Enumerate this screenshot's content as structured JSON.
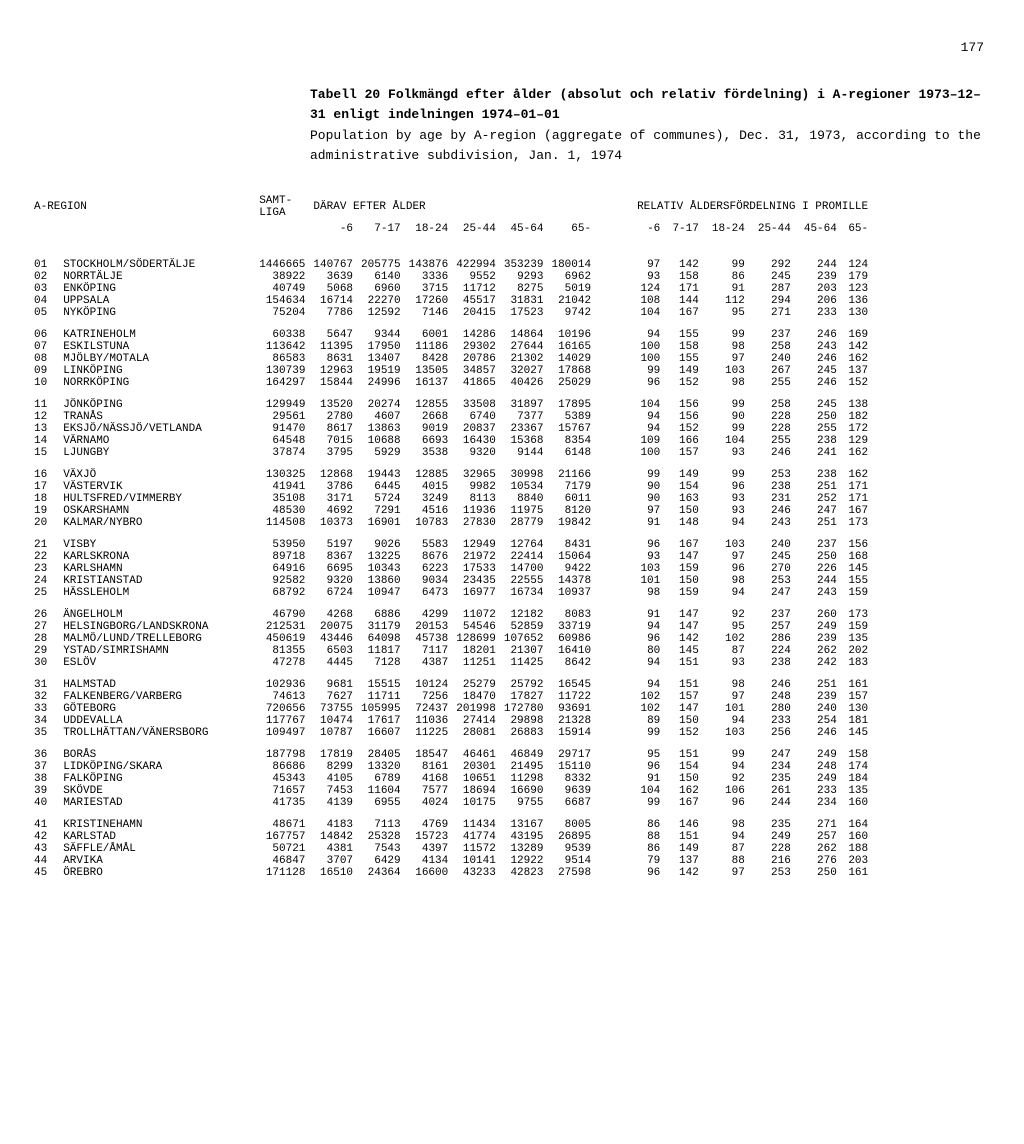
{
  "page_number": "177",
  "title_bold": "Tabell 20   Folkmängd efter ålder (absolut och relativ fördelning) i A-regioner 1973–12–31 enligt indelningen 1974–01–01",
  "title_sub": "Population by age by A-region (aggregate of communes), Dec. 31, 1973, according to the administrative subdivision, Jan. 1, 1974",
  "header_left": "A-REGION",
  "header_samt": "SAMT-\nLIGA",
  "header_darav": "DÄRAV EFTER ÅLDER",
  "header_relativ": "RELATIV ÅLDERSFÖRDELNING I PROMILLE",
  "age_cols": [
    "-6",
    "7-17",
    "18-24",
    "25-44",
    "45-64",
    "65-"
  ],
  "rel_cols": [
    "-6",
    "7-17",
    "18-24",
    "25-44",
    "45-64",
    "65-"
  ],
  "groups": [
    [
      [
        "01",
        "STOCKHOLM/SÖDERTÄLJE",
        "1446665",
        "140767",
        "205775",
        "143876",
        "422994",
        "353239",
        "180014",
        "97",
        "142",
        "99",
        "292",
        "244",
        "124"
      ],
      [
        "02",
        "NORRTÄLJE",
        "38922",
        "3639",
        "6140",
        "3336",
        "9552",
        "9293",
        "6962",
        "93",
        "158",
        "86",
        "245",
        "239",
        "179"
      ],
      [
        "03",
        "ENKÖPING",
        "40749",
        "5068",
        "6960",
        "3715",
        "11712",
        "8275",
        "5019",
        "124",
        "171",
        "91",
        "287",
        "203",
        "123"
      ],
      [
        "04",
        "UPPSALA",
        "154634",
        "16714",
        "22270",
        "17260",
        "45517",
        "31831",
        "21042",
        "108",
        "144",
        "112",
        "294",
        "206",
        "136"
      ],
      [
        "05",
        "NYKÖPING",
        "75204",
        "7786",
        "12592",
        "7146",
        "20415",
        "17523",
        "9742",
        "104",
        "167",
        "95",
        "271",
        "233",
        "130"
      ]
    ],
    [
      [
        "06",
        "KATRINEHOLM",
        "60338",
        "5647",
        "9344",
        "6001",
        "14286",
        "14864",
        "10196",
        "94",
        "155",
        "99",
        "237",
        "246",
        "169"
      ],
      [
        "07",
        "ESKILSTUNA",
        "113642",
        "11395",
        "17950",
        "11186",
        "29302",
        "27644",
        "16165",
        "100",
        "158",
        "98",
        "258",
        "243",
        "142"
      ],
      [
        "08",
        "MJÖLBY/MOTALA",
        "86583",
        "8631",
        "13407",
        "8428",
        "20786",
        "21302",
        "14029",
        "100",
        "155",
        "97",
        "240",
        "246",
        "162"
      ],
      [
        "09",
        "LINKÖPING",
        "130739",
        "12963",
        "19519",
        "13505",
        "34857",
        "32027",
        "17868",
        "99",
        "149",
        "103",
        "267",
        "245",
        "137"
      ],
      [
        "10",
        "NORRKÖPING",
        "164297",
        "15844",
        "24996",
        "16137",
        "41865",
        "40426",
        "25029",
        "96",
        "152",
        "98",
        "255",
        "246",
        "152"
      ]
    ],
    [
      [
        "11",
        "JÖNKÖPING",
        "129949",
        "13520",
        "20274",
        "12855",
        "33508",
        "31897",
        "17895",
        "104",
        "156",
        "99",
        "258",
        "245",
        "138"
      ],
      [
        "12",
        "TRANÅS",
        "29561",
        "2780",
        "4607",
        "2668",
        "6740",
        "7377",
        "5389",
        "94",
        "156",
        "90",
        "228",
        "250",
        "182"
      ],
      [
        "13",
        "EKSJÖ/NÄSSJÖ/VETLANDA",
        "91470",
        "8617",
        "13863",
        "9019",
        "20837",
        "23367",
        "15767",
        "94",
        "152",
        "99",
        "228",
        "255",
        "172"
      ],
      [
        "14",
        "VÄRNAMO",
        "64548",
        "7015",
        "10688",
        "6693",
        "16430",
        "15368",
        "8354",
        "109",
        "166",
        "104",
        "255",
        "238",
        "129"
      ],
      [
        "15",
        "LJUNGBY",
        "37874",
        "3795",
        "5929",
        "3538",
        "9320",
        "9144",
        "6148",
        "100",
        "157",
        "93",
        "246",
        "241",
        "162"
      ]
    ],
    [
      [
        "16",
        "VÄXJÖ",
        "130325",
        "12868",
        "19443",
        "12885",
        "32965",
        "30998",
        "21166",
        "99",
        "149",
        "99",
        "253",
        "238",
        "162"
      ],
      [
        "17",
        "VÄSTERVIK",
        "41941",
        "3786",
        "6445",
        "4015",
        "9982",
        "10534",
        "7179",
        "90",
        "154",
        "96",
        "238",
        "251",
        "171"
      ],
      [
        "18",
        "HULTSFRED/VIMMERBY",
        "35108",
        "3171",
        "5724",
        "3249",
        "8113",
        "8840",
        "6011",
        "90",
        "163",
        "93",
        "231",
        "252",
        "171"
      ],
      [
        "19",
        "OSKARSHAMN",
        "48530",
        "4692",
        "7291",
        "4516",
        "11936",
        "11975",
        "8120",
        "97",
        "150",
        "93",
        "246",
        "247",
        "167"
      ],
      [
        "20",
        "KALMAR/NYBRO",
        "114508",
        "10373",
        "16901",
        "10783",
        "27830",
        "28779",
        "19842",
        "91",
        "148",
        "94",
        "243",
        "251",
        "173"
      ]
    ],
    [
      [
        "21",
        "VISBY",
        "53950",
        "5197",
        "9026",
        "5583",
        "12949",
        "12764",
        "8431",
        "96",
        "167",
        "103",
        "240",
        "237",
        "156"
      ],
      [
        "22",
        "KARLSKRONA",
        "89718",
        "8367",
        "13225",
        "8676",
        "21972",
        "22414",
        "15064",
        "93",
        "147",
        "97",
        "245",
        "250",
        "168"
      ],
      [
        "23",
        "KARLSHAMN",
        "64916",
        "6695",
        "10343",
        "6223",
        "17533",
        "14700",
        "9422",
        "103",
        "159",
        "96",
        "270",
        "226",
        "145"
      ],
      [
        "24",
        "KRISTIANSTAD",
        "92582",
        "9320",
        "13860",
        "9034",
        "23435",
        "22555",
        "14378",
        "101",
        "150",
        "98",
        "253",
        "244",
        "155"
      ],
      [
        "25",
        "HÄSSLEHOLM",
        "68792",
        "6724",
        "10947",
        "6473",
        "16977",
        "16734",
        "10937",
        "98",
        "159",
        "94",
        "247",
        "243",
        "159"
      ]
    ],
    [
      [
        "26",
        "ÄNGELHOLM",
        "46790",
        "4268",
        "6886",
        "4299",
        "11072",
        "12182",
        "8083",
        "91",
        "147",
        "92",
        "237",
        "260",
        "173"
      ],
      [
        "27",
        "HELSINGBORG/LANDSKRONA",
        "212531",
        "20075",
        "31179",
        "20153",
        "54546",
        "52859",
        "33719",
        "94",
        "147",
        "95",
        "257",
        "249",
        "159"
      ],
      [
        "28",
        "MALMÖ/LUND/TRELLEBORG",
        "450619",
        "43446",
        "64098",
        "45738",
        "128699",
        "107652",
        "60986",
        "96",
        "142",
        "102",
        "286",
        "239",
        "135"
      ],
      [
        "29",
        "YSTAD/SIMRISHAMN",
        "81355",
        "6503",
        "11817",
        "7117",
        "18201",
        "21307",
        "16410",
        "80",
        "145",
        "87",
        "224",
        "262",
        "202"
      ],
      [
        "30",
        "ESLÖV",
        "47278",
        "4445",
        "7128",
        "4387",
        "11251",
        "11425",
        "8642",
        "94",
        "151",
        "93",
        "238",
        "242",
        "183"
      ]
    ],
    [
      [
        "31",
        "HALMSTAD",
        "102936",
        "9681",
        "15515",
        "10124",
        "25279",
        "25792",
        "16545",
        "94",
        "151",
        "98",
        "246",
        "251",
        "161"
      ],
      [
        "32",
        "FALKENBERG/VARBERG",
        "74613",
        "7627",
        "11711",
        "7256",
        "18470",
        "17827",
        "11722",
        "102",
        "157",
        "97",
        "248",
        "239",
        "157"
      ],
      [
        "33",
        "GÖTEBORG",
        "720656",
        "73755",
        "105995",
        "72437",
        "201998",
        "172780",
        "93691",
        "102",
        "147",
        "101",
        "280",
        "240",
        "130"
      ],
      [
        "34",
        "UDDEVALLA",
        "117767",
        "10474",
        "17617",
        "11036",
        "27414",
        "29898",
        "21328",
        "89",
        "150",
        "94",
        "233",
        "254",
        "181"
      ],
      [
        "35",
        "TROLLHÄTTAN/VÄNERSBORG",
        "109497",
        "10787",
        "16607",
        "11225",
        "28081",
        "26883",
        "15914",
        "99",
        "152",
        "103",
        "256",
        "246",
        "145"
      ]
    ],
    [
      [
        "36",
        "BORÅS",
        "187798",
        "17819",
        "28405",
        "18547",
        "46461",
        "46849",
        "29717",
        "95",
        "151",
        "99",
        "247",
        "249",
        "158"
      ],
      [
        "37",
        "LIDKÖPING/SKARA",
        "86686",
        "8299",
        "13320",
        "8161",
        "20301",
        "21495",
        "15110",
        "96",
        "154",
        "94",
        "234",
        "248",
        "174"
      ],
      [
        "38",
        "FALKÖPING",
        "45343",
        "4105",
        "6789",
        "4168",
        "10651",
        "11298",
        "8332",
        "91",
        "150",
        "92",
        "235",
        "249",
        "184"
      ],
      [
        "39",
        "SKÖVDE",
        "71657",
        "7453",
        "11604",
        "7577",
        "18694",
        "16690",
        "9639",
        "104",
        "162",
        "106",
        "261",
        "233",
        "135"
      ],
      [
        "40",
        "MARIESTAD",
        "41735",
        "4139",
        "6955",
        "4024",
        "10175",
        "9755",
        "6687",
        "99",
        "167",
        "96",
        "244",
        "234",
        "160"
      ]
    ],
    [
      [
        "41",
        "KRISTINEHAMN",
        "48671",
        "4183",
        "7113",
        "4769",
        "11434",
        "13167",
        "8005",
        "86",
        "146",
        "98",
        "235",
        "271",
        "164"
      ],
      [
        "42",
        "KARLSTAD",
        "167757",
        "14842",
        "25328",
        "15723",
        "41774",
        "43195",
        "26895",
        "88",
        "151",
        "94",
        "249",
        "257",
        "160"
      ],
      [
        "43",
        "SÄFFLE/ÅMÅL",
        "50721",
        "4381",
        "7543",
        "4397",
        "11572",
        "13289",
        "9539",
        "86",
        "149",
        "87",
        "228",
        "262",
        "188"
      ],
      [
        "44",
        "ARVIKA",
        "46847",
        "3707",
        "6429",
        "4134",
        "10141",
        "12922",
        "9514",
        "79",
        "137",
        "88",
        "216",
        "276",
        "203"
      ],
      [
        "45",
        "ÖREBRO",
        "171128",
        "16510",
        "24364",
        "16600",
        "43233",
        "42823",
        "27598",
        "96",
        "142",
        "97",
        "253",
        "250",
        "161"
      ]
    ]
  ]
}
